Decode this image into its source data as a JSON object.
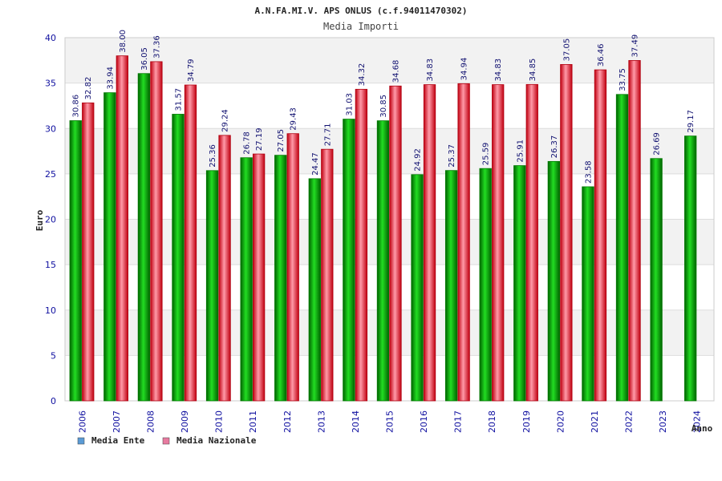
{
  "chart_data": {
    "type": "bar",
    "title": "A.N.FA.MI.V. APS ONLUS (c.f.94011470302)",
    "subtitle": "Media Importi",
    "xlabel": "Anno",
    "ylabel": "Euro",
    "ylim": [
      0,
      40
    ],
    "yticks": [
      0,
      5,
      10,
      15,
      20,
      25,
      30,
      35,
      40
    ],
    "grid": "horizontal bands",
    "legend_position": "bottom-left",
    "categories": [
      "2006",
      "2007",
      "2008",
      "2009",
      "2010",
      "2011",
      "2012",
      "2013",
      "2014",
      "2015",
      "2016",
      "2017",
      "2018",
      "2019",
      "2020",
      "2021",
      "2022",
      "2023",
      "2024"
    ],
    "series": [
      {
        "name": "Media Ente",
        "bar_color": "#00a000",
        "legend_color": "#5b9bd5",
        "values": [
          30.86,
          33.94,
          36.05,
          31.57,
          25.36,
          26.78,
          27.05,
          24.47,
          31.03,
          30.85,
          24.92,
          25.37,
          25.59,
          25.91,
          26.37,
          23.58,
          33.75,
          26.69,
          29.17
        ],
        "labels": [
          "30.86",
          "33.94",
          "36.05",
          "31.57",
          "25.36",
          "26.78",
          "27.05",
          "24.47",
          "31.03",
          "30.85",
          "24.92",
          "25.37",
          "25.59",
          "25.91",
          "26.37",
          "23.58",
          "33.75",
          "26.69",
          "29.17"
        ]
      },
      {
        "name": "Media Nazionale",
        "bar_color": "#e02030",
        "legend_color": "#e87aa0",
        "values": [
          32.82,
          38.0,
          37.36,
          34.79,
          29.24,
          27.19,
          29.43,
          27.71,
          34.32,
          34.68,
          34.83,
          34.94,
          34.83,
          34.85,
          37.05,
          36.46,
          37.49,
          null,
          null
        ],
        "labels": [
          "32.82",
          "38.00",
          "37.36",
          "34.79",
          "29.24",
          "27.19",
          "29.43",
          "27.71",
          "34.32",
          "34.68",
          "34.83",
          "34.94",
          "34.83",
          "34.85",
          "37.05",
          "36.46",
          "37.49",
          "",
          ""
        ]
      }
    ]
  }
}
